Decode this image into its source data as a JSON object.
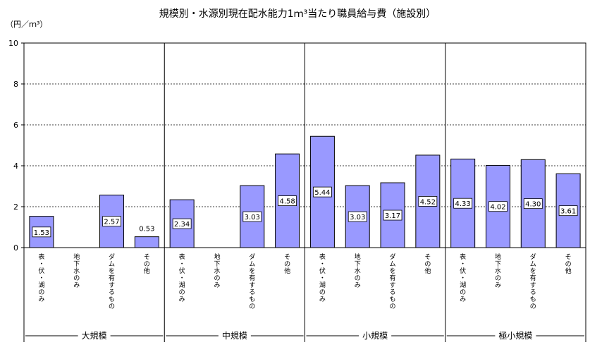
{
  "chart_data": {
    "type": "bar",
    "title": "規模別・水源別現在配水能力1ｍ³当たり職員給与費（施設別）",
    "unit_label": "（円／ｍ³）",
    "ylim": [
      0,
      10
    ],
    "y_ticks": [
      0,
      2,
      4,
      6,
      8,
      10
    ],
    "grid": true,
    "bar_color": "#9999ff",
    "groups": [
      {
        "name": "大規模",
        "categories": [
          "表・伏・湖のみ",
          "地下水のみ",
          "ダムを有するもの",
          "その他"
        ],
        "values": [
          1.53,
          null,
          2.57,
          0.53
        ],
        "labels": [
          "1.53",
          "",
          "2.57",
          "0.53"
        ]
      },
      {
        "name": "中規模",
        "categories": [
          "表・伏・湖のみ",
          "地下水のみ",
          "ダムを有するもの",
          "その他"
        ],
        "values": [
          2.34,
          null,
          3.03,
          4.58
        ],
        "labels": [
          "2.34",
          "",
          "3.03",
          "4.58"
        ]
      },
      {
        "name": "小規模",
        "categories": [
          "表・伏・湖のみ",
          "地下水のみ",
          "ダムを有するもの",
          "その他"
        ],
        "values": [
          5.44,
          3.03,
          3.17,
          4.52
        ],
        "labels": [
          "5.44",
          "3.03",
          "3.17",
          "4.52"
        ]
      },
      {
        "name": "極小規模",
        "categories": [
          "表・伏・湖のみ",
          "地下水のみ",
          "ダムを有するもの",
          "その他"
        ],
        "values": [
          4.33,
          4.02,
          4.3,
          3.61
        ],
        "labels": [
          "4.33",
          "4.02",
          "4.30",
          "3.61"
        ]
      }
    ]
  }
}
